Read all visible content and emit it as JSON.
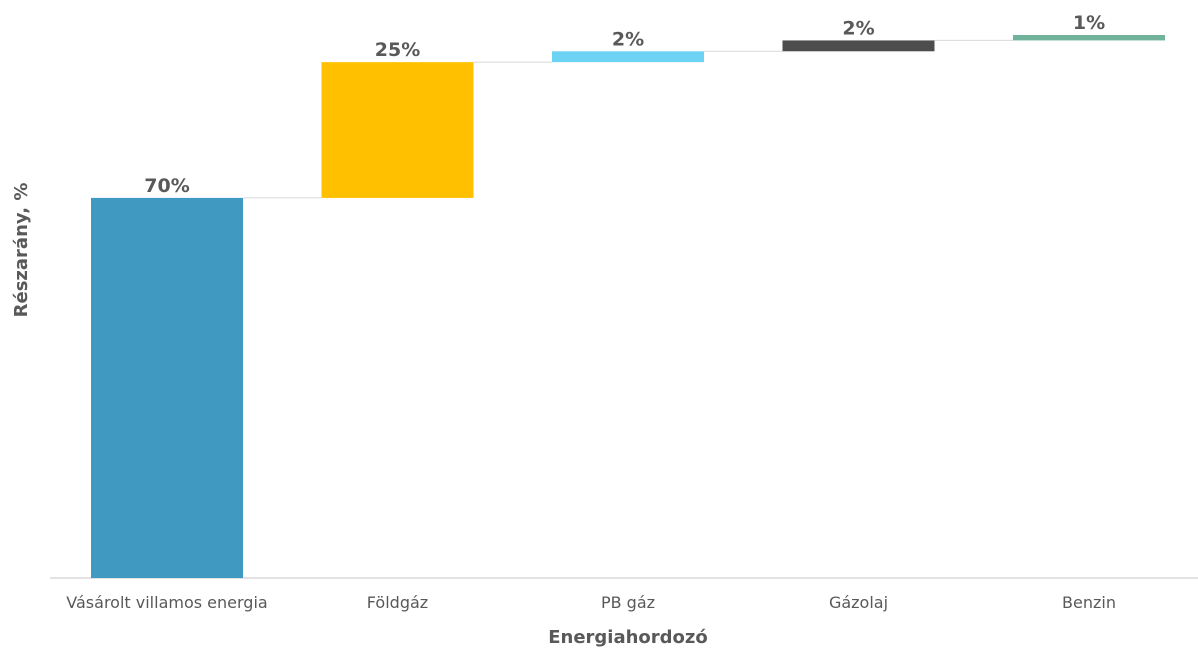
{
  "chart_data": {
    "type": "waterfall",
    "title": "",
    "xlabel": "Energiahordozó",
    "ylabel": "Részarány, %",
    "ylim": [
      0,
      100
    ],
    "grid": false,
    "legend": "none",
    "categories": [
      "Vásárolt villamos energia",
      "Földgáz",
      "PB gáz",
      "Gázolaj",
      "Benzin"
    ],
    "values": [
      70,
      25,
      2,
      2,
      1
    ],
    "data_labels": [
      "70%",
      "25%",
      "2%",
      "2%",
      "1%"
    ],
    "colors": [
      "#3f99c1",
      "#ffc000",
      "#6dd3f5",
      "#4d4d4d",
      "#70b39a"
    ]
  }
}
